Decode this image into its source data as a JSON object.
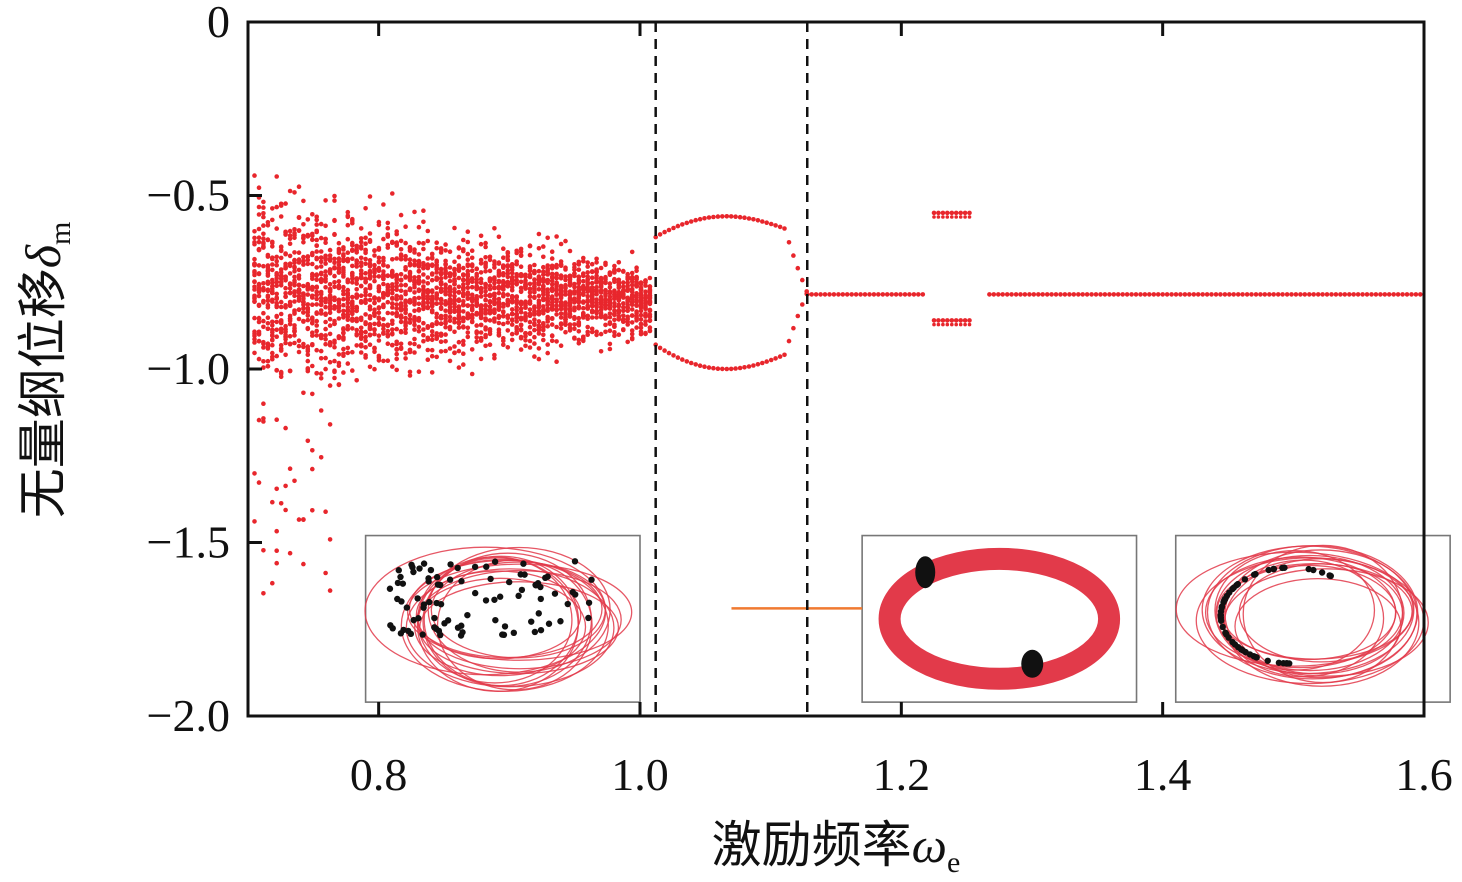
{
  "chart_data": {
    "type": "scatter",
    "title": "",
    "xlabel": "激励频率",
    "xlabel_symbol": "ω",
    "xlabel_subscript": "e",
    "ylabel": "无量纲位移",
    "ylabel_symbol": "δ",
    "ylabel_subscript": "m",
    "xlim": [
      0.7,
      1.6
    ],
    "ylim": [
      -2.0,
      0.0
    ],
    "x_ticks": [
      "0.8",
      "1.0",
      "1.2",
      "1.4",
      "1.6"
    ],
    "x_tick_values": [
      0.8,
      1.0,
      1.2,
      1.4,
      1.6
    ],
    "y_ticks": [
      "0",
      "−0.5",
      "−1.0",
      "−1.5",
      "−2.0"
    ],
    "y_tick_values": [
      0.0,
      -0.5,
      -1.0,
      -1.5,
      -2.0
    ],
    "grid": false,
    "dashed_lines_x": [
      1.012,
      1.128
    ],
    "point_color": "#e8262c",
    "marker_color": "#111111",
    "orbit_color": "#e23a4a",
    "pointer_color": "#f07a30",
    "regions": [
      {
        "name": "chaotic",
        "x_range": [
          0.705,
          1.01
        ],
        "y_center": [
          -0.78,
          -0.8
        ],
        "y_spread": [
          0.45,
          0.16
        ]
      },
      {
        "name": "period-2 bubble",
        "x_range": [
          1.012,
          1.128
        ],
        "upper": -0.56,
        "lower": -1.0,
        "split": -0.78
      },
      {
        "name": "period-1",
        "x_range": [
          1.128,
          1.6
        ],
        "y": -0.785
      },
      {
        "name": "period-2 window",
        "x_range": [
          1.225,
          1.255
        ],
        "branches": [
          -0.55,
          -0.86
        ]
      }
    ],
    "insets": [
      {
        "name": "chaotic phase portrait",
        "x_range": [
          0.79,
          1.0
        ],
        "y_range": [
          -1.48,
          -1.96
        ],
        "style": "chaotic"
      },
      {
        "name": "period-2 phase portrait",
        "x_range": [
          1.17,
          1.38
        ],
        "y_range": [
          -1.48,
          -1.96
        ],
        "style": "loop"
      },
      {
        "name": "quasi-periodic phase portrait",
        "x_range": [
          1.41,
          1.62
        ],
        "y_range": [
          -1.48,
          -1.96
        ],
        "style": "quasi"
      }
    ],
    "pointer": {
      "from_x": 1.07,
      "to_x": 1.17,
      "y": -1.69
    }
  }
}
